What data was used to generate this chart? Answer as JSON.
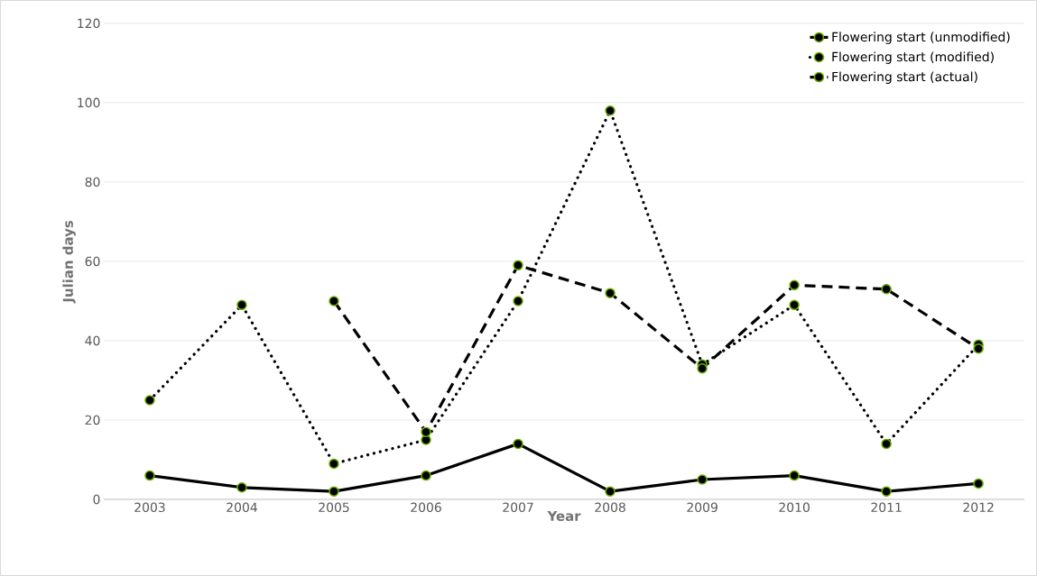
{
  "chart_data": {
    "type": "line",
    "xlabel": "Year",
    "ylabel": "Julian days",
    "categories": [
      "2003",
      "2004",
      "2005",
      "2006",
      "2007",
      "2008",
      "2009",
      "2010",
      "2011",
      "2012"
    ],
    "series": [
      {
        "name": "Flowering start (unmodified)",
        "color": "#000000",
        "line_style": "solid",
        "values": [
          6,
          3,
          2,
          6,
          14,
          2,
          5,
          6,
          2,
          4
        ]
      },
      {
        "name": "Flowering start (modified)",
        "color": "#000000",
        "line_style": "dotted",
        "values": [
          25,
          49,
          9,
          15,
          50,
          98,
          34,
          49,
          14,
          39
        ]
      },
      {
        "name": "Flowering start (actual)",
        "color": "#000000",
        "line_style": "dashed",
        "values": [
          null,
          null,
          50,
          17,
          59,
          52,
          33,
          54,
          53,
          38
        ]
      }
    ],
    "ylim": [
      0,
      120
    ],
    "yticks": [
      0,
      20,
      40,
      60,
      80,
      100,
      120
    ],
    "grid": "y",
    "legend": "top right",
    "marker": "circle"
  }
}
